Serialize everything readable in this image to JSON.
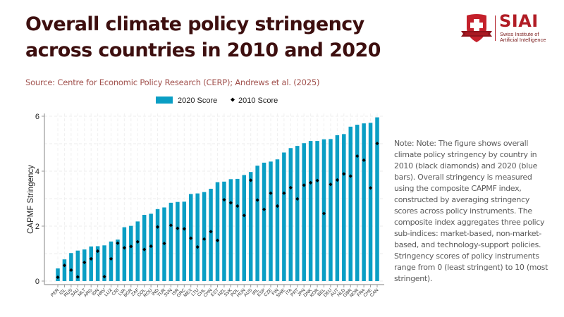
{
  "header": {
    "title": "Overall climate policy stringency across countries in 2010 and 2020",
    "source": "Source: Centre for Economic Policy Research (CERP); Andrews et al. (2025)"
  },
  "logo": {
    "name": "SIAI",
    "subtitle_line1": "Swiss Institute of",
    "subtitle_line2": "Artificial Intelligence",
    "brand_color": "#b11c25"
  },
  "note": "Note: Note: The figure shows overall climate policy stringency by country in 2010 (black diamonds) and 2020 (blue bars). Overall stringency is measured using the composite CAPMF index, constructed by averaging stringency scores across policy instruments. The composite index aggregates three policy sub-indices: market-based, non-market-based, and technology-support policies. Stringency scores of policy instruments range from 0 (least stringent) to 10 (most stringent).",
  "chart_data": {
    "type": "bar",
    "title": "",
    "xlabel": "",
    "ylabel": "CAPMF Stringency",
    "ylim": [
      0,
      6.1
    ],
    "yticks": [
      0,
      2,
      4,
      6
    ],
    "grid": true,
    "legend_position": "top",
    "bar_color": "#0a9ec4",
    "marker_color": "#000000",
    "categories": [
      "PER",
      "ISL",
      "RUS",
      "SAU",
      "MLT",
      "ARG",
      "IDN",
      "HRV",
      "LUX",
      "CRI",
      "LVA",
      "BGR",
      "ZAF",
      "COL",
      "ROU",
      "IND",
      "TUR",
      "SVN",
      "ISR",
      "GRC",
      "MEX",
      "LTU",
      "CHL",
      "CHN",
      "EST",
      "NZL",
      "SVK",
      "POL",
      "HUN",
      "AUS",
      "IRL",
      "ESP",
      "CZE",
      "FIN",
      "SWE",
      "ITA",
      "PRT",
      "JPN",
      "DNK",
      "KOR",
      "BEL",
      "DEU",
      "AUT",
      "NLD",
      "GBR",
      "NOR",
      "FRA",
      "CHE",
      "CAN"
    ],
    "series": [
      {
        "name": "2020 Score",
        "kind": "bar",
        "values": [
          0.46,
          0.79,
          1.02,
          1.11,
          1.15,
          1.26,
          1.27,
          1.3,
          1.44,
          1.51,
          1.96,
          2.01,
          2.17,
          2.41,
          2.45,
          2.62,
          2.68,
          2.85,
          2.88,
          2.89,
          3.17,
          3.19,
          3.24,
          3.36,
          3.6,
          3.62,
          3.71,
          3.72,
          3.86,
          3.97,
          4.2,
          4.31,
          4.35,
          4.43,
          4.68,
          4.84,
          4.92,
          5.02,
          5.1,
          5.1,
          5.16,
          5.17,
          5.31,
          5.35,
          5.62,
          5.69,
          5.74,
          5.76,
          5.96
        ]
      },
      {
        "name": "2010 Score",
        "kind": "diamond",
        "values": [
          0.14,
          0.57,
          0.4,
          0.15,
          0.68,
          0.81,
          1.09,
          0.16,
          0.81,
          1.38,
          1.21,
          1.26,
          1.43,
          1.15,
          1.27,
          1.97,
          1.37,
          2.03,
          1.92,
          1.9,
          1.56,
          1.24,
          1.53,
          1.8,
          1.48,
          2.96,
          2.85,
          2.73,
          2.39,
          3.67,
          2.95,
          2.61,
          3.2,
          2.73,
          3.2,
          3.4,
          2.99,
          3.49,
          3.58,
          3.66,
          2.46,
          3.52,
          3.68,
          3.9,
          3.82,
          4.55,
          4.4,
          3.39,
          5.01
        ]
      }
    ]
  }
}
